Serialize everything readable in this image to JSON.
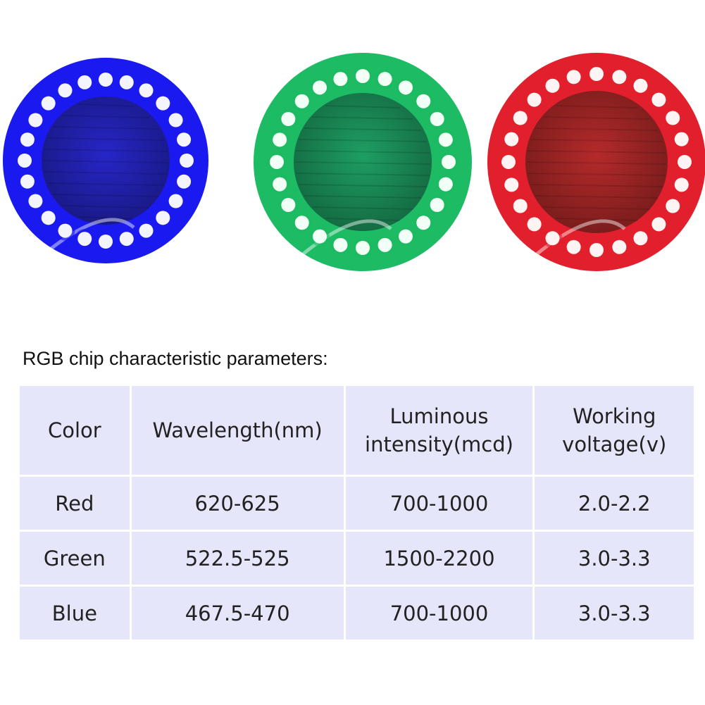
{
  "photos": [
    {
      "color_name": "blue",
      "ring_color": "#1a1af0",
      "board_color": "#2626c8",
      "led_color": "#f4f4ff"
    },
    {
      "color_name": "green",
      "ring_color": "#1dbb63",
      "board_color": "#1e9e63",
      "led_color": "#f2fff6"
    },
    {
      "color_name": "red",
      "ring_color": "#e21f2c",
      "board_color": "#b52a2a",
      "led_color": "#fff4f4"
    }
  ],
  "table": {
    "title": "RGB chip characteristic parameters:",
    "headers": [
      "Color",
      "Wavelength(nm)",
      "Luminous\nintensity(mcd)",
      "Working\nvoltage(v)"
    ],
    "rows": [
      [
        "Red",
        "620-625",
        "700-1000",
        "2.0-2.2"
      ],
      [
        "Green",
        "522.5-525",
        "1500-2200",
        "3.0-3.3"
      ],
      [
        "Blue",
        "467.5-470",
        "700-1000",
        "3.0-3.3"
      ]
    ],
    "cell_bg": "#e6e6fb"
  }
}
